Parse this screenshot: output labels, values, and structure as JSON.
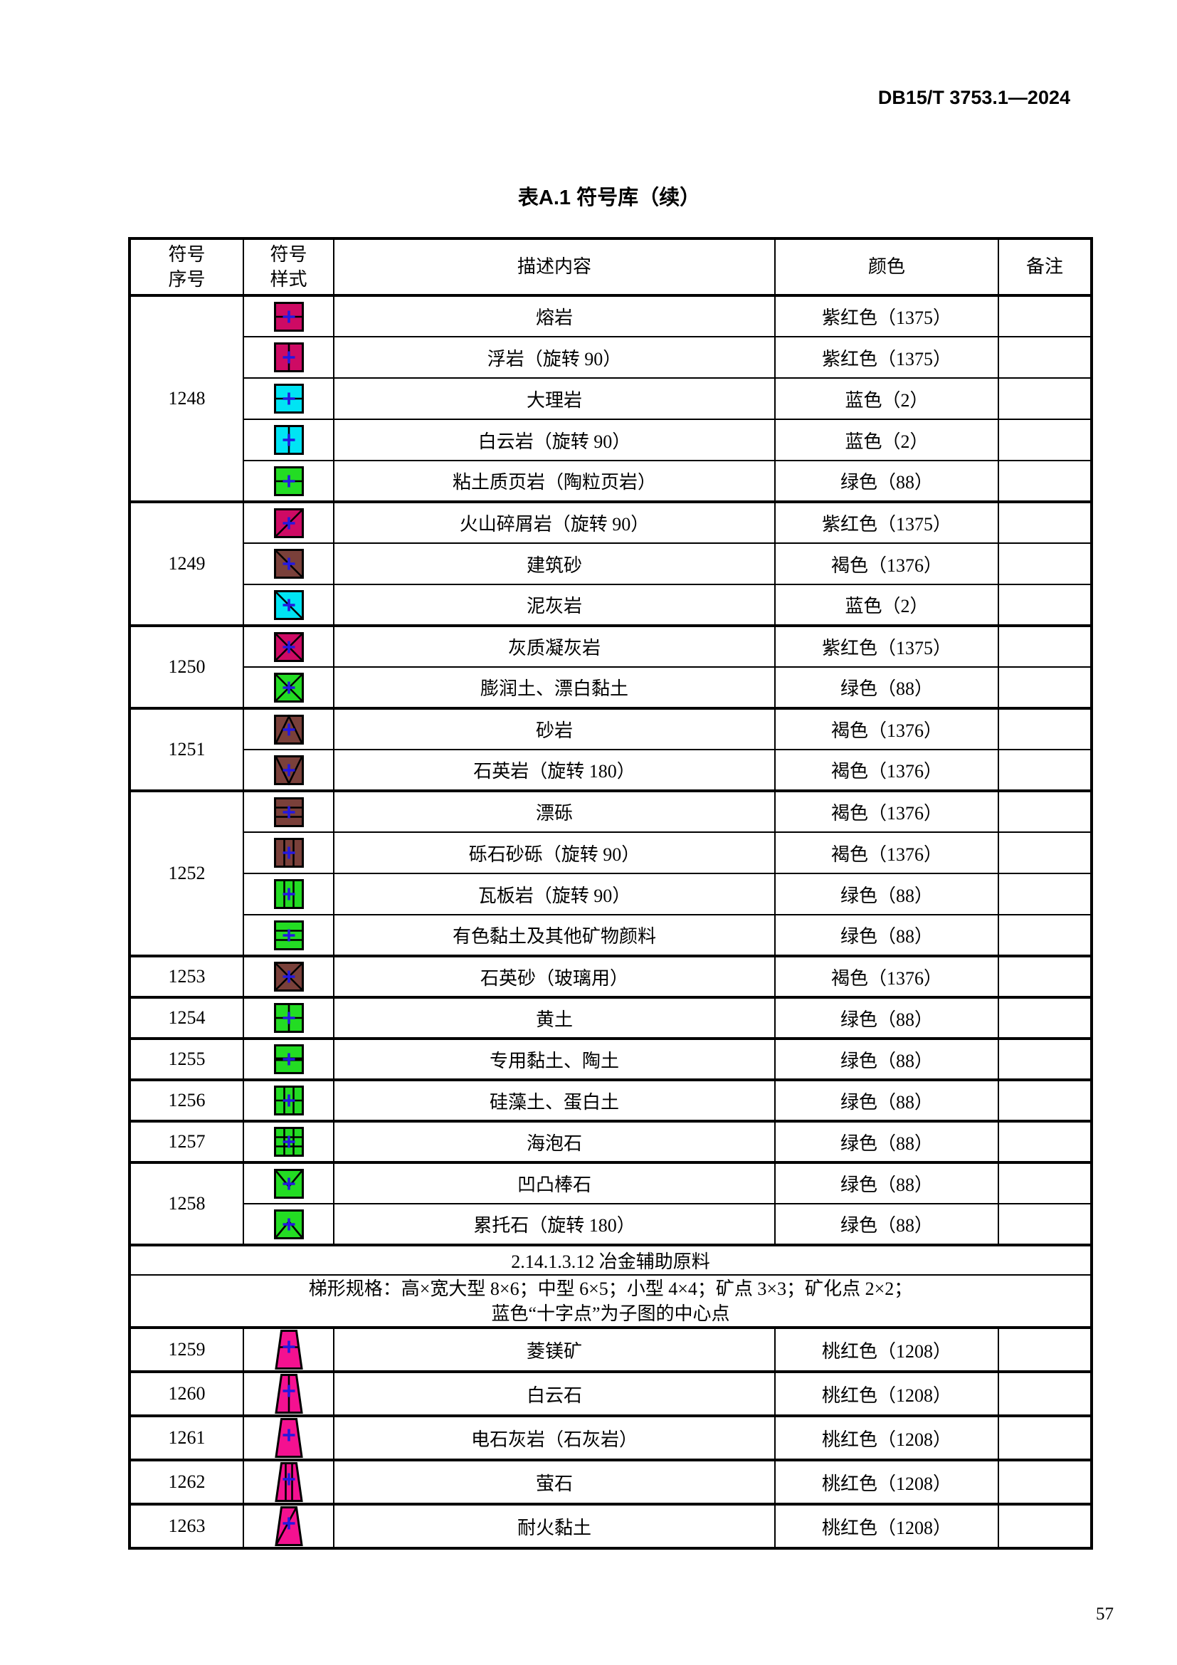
{
  "page": {
    "doc_number": "DB15/T 3753.1—2024",
    "title": "表A.1 符号库（续）",
    "page_number": "57"
  },
  "table": {
    "headers": {
      "no_line1": "符号",
      "no_line2": "序号",
      "style_line1": "符号",
      "style_line2": "样式",
      "desc": "描述内容",
      "color": "颜色",
      "note": "备注"
    },
    "palette": {
      "magenta": "#CE0A64",
      "cyan": "#00E4F4",
      "green": "#23DC23",
      "brown": "#7A403A",
      "pink": "#F41190",
      "cross": "#2418E0",
      "line": "#000000"
    },
    "groups": [
      {
        "no": "1248",
        "rows": [
          {
            "shape": "square",
            "fill": "magenta",
            "pattern": "hline",
            "desc": "熔岩",
            "color": "紫红色（1375）",
            "note": ""
          },
          {
            "shape": "square",
            "fill": "magenta",
            "pattern": "vline",
            "desc": "浮岩（旋转 90）",
            "color": "紫红色（1375）",
            "note": ""
          },
          {
            "shape": "square",
            "fill": "cyan",
            "pattern": "hline",
            "desc": "大理岩",
            "color": "蓝色（2）",
            "note": ""
          },
          {
            "shape": "square",
            "fill": "cyan",
            "pattern": "vline",
            "desc": "白云岩（旋转 90）",
            "color": "蓝色（2）",
            "note": ""
          },
          {
            "shape": "square",
            "fill": "green",
            "pattern": "hline",
            "desc": "粘土质页岩（陶粒页岩）",
            "color": "绿色（88）",
            "note": ""
          }
        ]
      },
      {
        "no": "1249",
        "rows": [
          {
            "shape": "square",
            "fill": "magenta",
            "pattern": "diag-up",
            "desc": "火山碎屑岩（旋转 90）",
            "color": "紫红色（1375）",
            "note": ""
          },
          {
            "shape": "square",
            "fill": "brown",
            "pattern": "diag-down",
            "desc": "建筑砂",
            "color": "褐色（1376）",
            "note": ""
          },
          {
            "shape": "square",
            "fill": "cyan",
            "pattern": "diag-down",
            "desc": "泥灰岩",
            "color": "蓝色（2）",
            "note": ""
          }
        ]
      },
      {
        "no": "1250",
        "rows": [
          {
            "shape": "square",
            "fill": "magenta",
            "pattern": "xcross",
            "desc": "灰质凝灰岩",
            "color": "紫红色（1375）",
            "note": ""
          },
          {
            "shape": "square",
            "fill": "green",
            "pattern": "xcross",
            "desc": "膨润土、漂白黏土",
            "color": "绿色（88）",
            "note": ""
          }
        ]
      },
      {
        "no": "1251",
        "rows": [
          {
            "shape": "square",
            "fill": "brown",
            "pattern": "tri-up",
            "desc": "砂岩",
            "color": "褐色（1376）",
            "note": ""
          },
          {
            "shape": "square",
            "fill": "brown",
            "pattern": "tri-down",
            "desc": "石英岩（旋转 180）",
            "color": "褐色（1376）",
            "note": ""
          }
        ]
      },
      {
        "no": "1252",
        "rows": [
          {
            "shape": "square",
            "fill": "brown",
            "pattern": "hlines2",
            "desc": "漂砾",
            "color": "褐色（1376）",
            "note": ""
          },
          {
            "shape": "square",
            "fill": "brown",
            "pattern": "vlines2",
            "desc": "砾石砂砾（旋转 90）",
            "color": "褐色（1376）",
            "note": ""
          },
          {
            "shape": "square",
            "fill": "green",
            "pattern": "vlines2",
            "desc": "瓦板岩（旋转 90）",
            "color": "绿色（88）",
            "note": ""
          },
          {
            "shape": "square",
            "fill": "green",
            "pattern": "hlines2",
            "desc": "有色黏土及其他矿物颜料",
            "color": "绿色（88）",
            "note": ""
          }
        ]
      },
      {
        "no": "1253",
        "rows": [
          {
            "shape": "square",
            "fill": "brown",
            "pattern": "xcross",
            "desc": "石英砂（玻璃用）",
            "color": "褐色（1376）",
            "note": ""
          }
        ]
      },
      {
        "no": "1254",
        "rows": [
          {
            "shape": "square",
            "fill": "green",
            "pattern": "plus",
            "desc": "黄土",
            "color": "绿色（88）",
            "note": ""
          }
        ]
      },
      {
        "no": "1255",
        "rows": [
          {
            "shape": "square",
            "fill": "green",
            "pattern": "hline-thick",
            "desc": "专用黏土、陶土",
            "color": "绿色（88）",
            "note": ""
          }
        ]
      },
      {
        "no": "1256",
        "rows": [
          {
            "shape": "square",
            "fill": "green",
            "pattern": "grid3x2",
            "desc": "硅藻土、蛋白土",
            "color": "绿色（88）",
            "note": ""
          }
        ]
      },
      {
        "no": "1257",
        "rows": [
          {
            "shape": "square",
            "fill": "green",
            "pattern": "grid3x3",
            "desc": "海泡石",
            "color": "绿色（88）",
            "note": ""
          }
        ]
      },
      {
        "no": "1258",
        "rows": [
          {
            "shape": "square",
            "fill": "green",
            "pattern": "vee",
            "desc": "凹凸棒石",
            "color": "绿色（88）",
            "note": ""
          },
          {
            "shape": "square",
            "fill": "green",
            "pattern": "caret",
            "desc": "累托石（旋转 180）",
            "color": "绿色（88）",
            "note": ""
          }
        ]
      }
    ],
    "section": {
      "code": "2.14.1.3.12  冶金辅助原料",
      "spec_line1": "梯形规格：高×宽大型 8×6；中型 6×5；小型 4×4；矿点 3×3；矿化点 2×2；",
      "spec_line2": "蓝色“十字点”为子图的中心点"
    },
    "groups2": [
      {
        "no": "1259",
        "rows": [
          {
            "shape": "trapezoid",
            "fill": "pink",
            "pattern": "hline",
            "desc": "菱镁矿",
            "color": "桃红色（1208）",
            "note": ""
          }
        ]
      },
      {
        "no": "1260",
        "rows": [
          {
            "shape": "trapezoid",
            "fill": "pink",
            "pattern": "vline",
            "desc": "白云石",
            "color": "桃红色（1208）",
            "note": ""
          }
        ]
      },
      {
        "no": "1261",
        "rows": [
          {
            "shape": "trapezoid",
            "fill": "pink",
            "pattern": "plain",
            "desc": "电石灰岩（石灰岩）",
            "color": "桃红色（1208）",
            "note": ""
          }
        ]
      },
      {
        "no": "1262",
        "rows": [
          {
            "shape": "trapezoid",
            "fill": "pink",
            "pattern": "vlines2",
            "desc": "萤石",
            "color": "桃红色（1208）",
            "note": ""
          }
        ]
      },
      {
        "no": "1263",
        "rows": [
          {
            "shape": "trapezoid",
            "fill": "pink",
            "pattern": "diag-up",
            "desc": "耐火黏土",
            "color": "桃红色（1208）",
            "note": ""
          }
        ]
      }
    ]
  }
}
